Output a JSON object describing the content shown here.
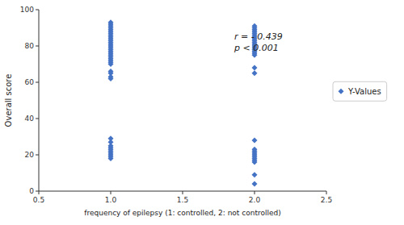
{
  "chart_data": {
    "type": "scatter",
    "x": [
      1,
      1,
      1,
      1,
      1,
      1,
      1,
      1,
      1,
      1,
      1,
      1,
      1,
      1,
      1,
      1,
      1,
      1,
      1,
      1,
      1,
      1,
      1,
      1,
      1,
      1,
      1,
      1,
      1,
      1,
      1,
      1,
      1,
      1,
      1,
      1,
      1,
      1,
      2,
      2,
      2,
      2,
      2,
      2,
      2,
      2,
      2,
      2,
      2,
      2,
      2,
      2,
      2,
      2,
      2,
      2,
      2,
      2,
      2,
      2,
      2,
      2,
      2,
      2,
      2,
      2,
      2,
      2
    ],
    "series": [
      {
        "name": "Y-Values",
        "color": "#4472C4",
        "marker": "diamond",
        "values": [
          93,
          92,
          91,
          90,
          89,
          88,
          87,
          86,
          85,
          84,
          83,
          82,
          81,
          80,
          79,
          78,
          77,
          76,
          75,
          74,
          73,
          72,
          71,
          70,
          66,
          65,
          63,
          62,
          29,
          27,
          25,
          24,
          23,
          22,
          21,
          20,
          19,
          18,
          91,
          90,
          89,
          88,
          87,
          86,
          85,
          84,
          83,
          82,
          81,
          80,
          79,
          78,
          77,
          76,
          75,
          68,
          65,
          28,
          23,
          22,
          21,
          20,
          19,
          18,
          17,
          16,
          9,
          4
        ]
      }
    ],
    "xlabel": "frequency of epilepsy (1: controlled, 2: not controlled)",
    "ylabel": "Overall score",
    "annotation": "r = - 0.439\np < 0.001",
    "xlim": [
      0.5,
      2.5
    ],
    "ylim": [
      0,
      100
    ],
    "xticks": [
      0.5,
      {
        "value": 1,
        "label": "1.0"
      },
      1.5,
      {
        "value": 2,
        "label": "2.0"
      },
      2.5
    ],
    "yticks": [
      0,
      20,
      40,
      60,
      80,
      100
    ],
    "legend": "right",
    "grid": false
  }
}
